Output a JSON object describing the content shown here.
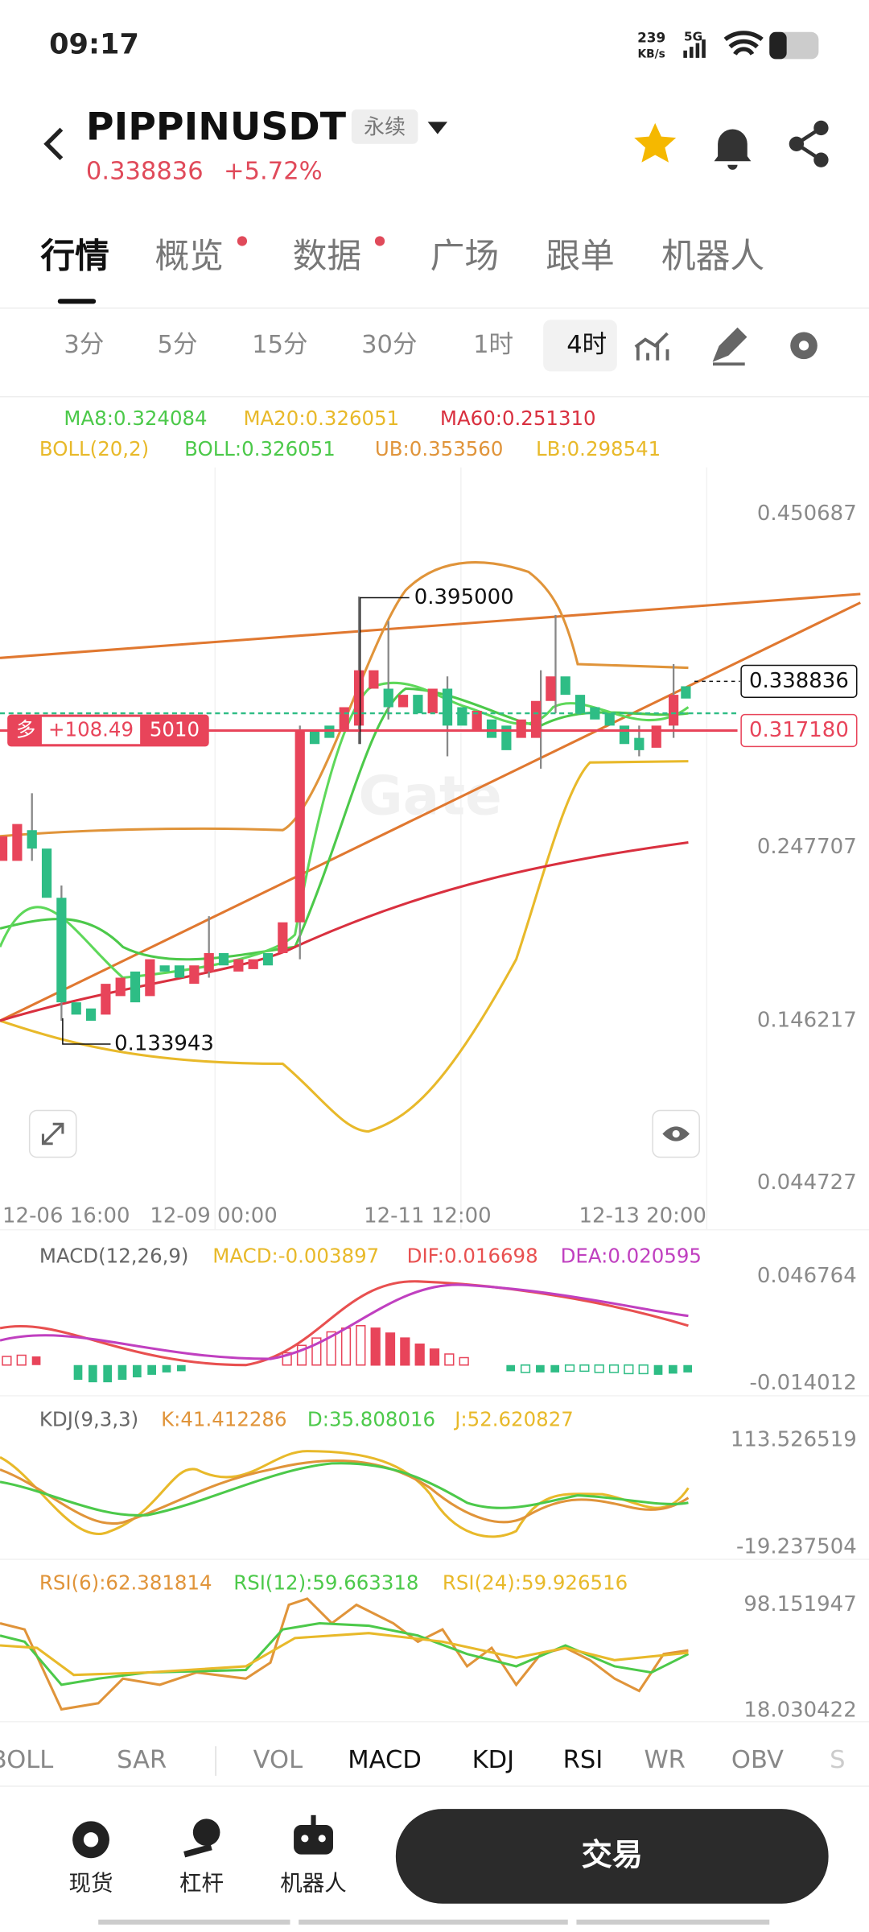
{
  "status_bar": {
    "time": "09:17",
    "speed": "239",
    "speed_unit": "KB/s",
    "network": "5G"
  },
  "header": {
    "symbol": "PIPPINUSDT",
    "contract_type": "永续",
    "price": "0.338836",
    "change": "+5.72%"
  },
  "tabs": [
    "行情",
    "概览",
    "数据",
    "广场",
    "跟单",
    "机器人"
  ],
  "intervals": [
    "3分",
    "5分",
    "15分",
    "30分",
    "1时",
    "4时"
  ],
  "main_chart": {
    "ma": [
      "MA8:0.324084",
      "MA20:0.326051",
      "MA60:0.251310"
    ],
    "boll": [
      "BOLL(20,2)",
      "BOLL:0.326051",
      "UB:0.353560",
      "LB:0.298541"
    ],
    "y_axis": [
      "0.450687",
      "0.247707",
      "0.146217",
      "0.044727"
    ],
    "last_price": "0.338836",
    "position_price": "0.317180",
    "high_label": "0.395000",
    "low_label": "0.133943",
    "position": {
      "side": "多",
      "pnl": "+108.49",
      "size": "5010"
    },
    "dates": [
      "12-06 16:00",
      "12-09 00:00",
      "12-11 12:00",
      "12-13 20:00"
    ],
    "watermark": "Gate"
  },
  "macd": {
    "labels": [
      "MACD(12,26,9)",
      "MACD:-0.003897",
      "DIF:0.016698",
      "DEA:0.020595"
    ],
    "y_axis": [
      "0.046764",
      "-0.014012"
    ]
  },
  "kdj": {
    "labels": [
      "KDJ(9,3,3)",
      "K:41.412286",
      "D:35.808016",
      "J:52.620827"
    ],
    "y_axis": [
      "113.526519",
      "-19.237504"
    ]
  },
  "rsi": {
    "labels": [
      "RSI(6):62.381814",
      "RSI(12):59.663318",
      "RSI(24):59.926516"
    ],
    "y_axis": [
      "98.151947",
      "18.030422"
    ]
  },
  "indicator_tabs": [
    "BOLL",
    "SAR",
    "VOL",
    "MACD",
    "KDJ",
    "RSI",
    "WR",
    "OBV",
    "S"
  ],
  "bottom_nav": [
    "现货",
    "杠杆",
    "机器人"
  ],
  "trade_button": "交易"
}
